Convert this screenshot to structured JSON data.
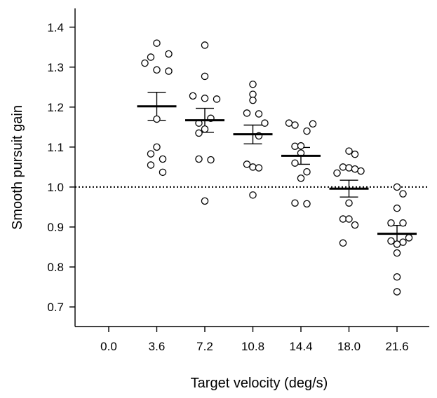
{
  "chart_data": {
    "type": "scatter",
    "xlabel": "Target velocity (deg/s)",
    "ylabel": "Smooth pursuit gain",
    "categories": [
      "0.0",
      "3.6",
      "7.2",
      "10.8",
      "14.4",
      "18.0",
      "21.6"
    ],
    "ylim": [
      0.65,
      1.45
    ],
    "yticks": [
      0.7,
      0.8,
      0.9,
      1.0,
      1.1,
      1.2,
      1.3,
      1.4
    ],
    "ytick_labels": [
      "0.7",
      "0.8",
      "0.9",
      "1.0",
      "1.1",
      "1.2",
      "1.3",
      "1.4"
    ],
    "reference_line": 1.0,
    "grid": false,
    "groups": [
      {
        "category": "3.6",
        "mean": 1.202,
        "err_low": 1.167,
        "err_high": 1.237,
        "points": [
          {
            "o": 0,
            "y": 1.36
          },
          {
            "o": 2,
            "y": 1.333
          },
          {
            "o": -1,
            "y": 1.325
          },
          {
            "o": -2,
            "y": 1.31
          },
          {
            "o": 0,
            "y": 1.293
          },
          {
            "o": 2,
            "y": 1.29
          },
          {
            "o": 0,
            "y": 1.17
          },
          {
            "o": 0,
            "y": 1.1
          },
          {
            "o": -1,
            "y": 1.083
          },
          {
            "o": 1,
            "y": 1.07
          },
          {
            "o": -1,
            "y": 1.055
          },
          {
            "o": 1,
            "y": 1.037
          }
        ]
      },
      {
        "category": "7.2",
        "mean": 1.167,
        "err_low": 1.137,
        "err_high": 1.197,
        "points": [
          {
            "o": 0,
            "y": 1.355
          },
          {
            "o": 0,
            "y": 1.277
          },
          {
            "o": -2,
            "y": 1.228
          },
          {
            "o": 0,
            "y": 1.222
          },
          {
            "o": 2,
            "y": 1.22
          },
          {
            "o": 1,
            "y": 1.172
          },
          {
            "o": -1,
            "y": 1.16
          },
          {
            "o": 0,
            "y": 1.145
          },
          {
            "o": -1,
            "y": 1.135
          },
          {
            "o": -1,
            "y": 1.07
          },
          {
            "o": 1,
            "y": 1.068
          },
          {
            "o": 0,
            "y": 0.965
          }
        ]
      },
      {
        "category": "10.8",
        "mean": 1.132,
        "err_low": 1.108,
        "err_high": 1.155,
        "points": [
          {
            "o": 0,
            "y": 1.257
          },
          {
            "o": 0,
            "y": 1.232
          },
          {
            "o": 0,
            "y": 1.217
          },
          {
            "o": -1,
            "y": 1.185
          },
          {
            "o": 1,
            "y": 1.183
          },
          {
            "o": 2,
            "y": 1.16
          },
          {
            "o": 1,
            "y": 1.128
          },
          {
            "o": -1,
            "y": 1.057
          },
          {
            "o": 0,
            "y": 1.05
          },
          {
            "o": 1,
            "y": 1.048
          },
          {
            "o": 0,
            "y": 0.98
          }
        ]
      },
      {
        "category": "14.4",
        "mean": 1.078,
        "err_low": 1.057,
        "err_high": 1.099,
        "points": [
          {
            "o": -2,
            "y": 1.16
          },
          {
            "o": 2,
            "y": 1.158
          },
          {
            "o": -1,
            "y": 1.155
          },
          {
            "o": 1,
            "y": 1.14
          },
          {
            "o": -1,
            "y": 1.102
          },
          {
            "o": 0,
            "y": 1.103
          },
          {
            "o": 0,
            "y": 1.085
          },
          {
            "o": -1,
            "y": 1.06
          },
          {
            "o": 1,
            "y": 1.038
          },
          {
            "o": 0,
            "y": 1.022
          },
          {
            "o": -1,
            "y": 0.96
          },
          {
            "o": 1,
            "y": 0.958
          }
        ]
      },
      {
        "category": "18.0",
        "mean": 0.996,
        "err_low": 0.975,
        "err_high": 1.017,
        "points": [
          {
            "o": 0,
            "y": 1.09
          },
          {
            "o": 1,
            "y": 1.082
          },
          {
            "o": -1,
            "y": 1.05
          },
          {
            "o": 0,
            "y": 1.048
          },
          {
            "o": 1,
            "y": 1.045
          },
          {
            "o": 2,
            "y": 1.04
          },
          {
            "o": -2,
            "y": 1.035
          },
          {
            "o": 0,
            "y": 0.96
          },
          {
            "o": -1,
            "y": 0.92
          },
          {
            "o": 0,
            "y": 0.92
          },
          {
            "o": 1,
            "y": 0.905
          },
          {
            "o": -1,
            "y": 0.86
          }
        ]
      },
      {
        "category": "21.6",
        "mean": 0.883,
        "err_low": 0.863,
        "err_high": 0.904,
        "points": [
          {
            "o": 0,
            "y": 1.0
          },
          {
            "o": 1,
            "y": 0.983
          },
          {
            "o": 0,
            "y": 0.947
          },
          {
            "o": -1,
            "y": 0.91
          },
          {
            "o": 1,
            "y": 0.91
          },
          {
            "o": 2,
            "y": 0.873
          },
          {
            "o": -1,
            "y": 0.865
          },
          {
            "o": 1,
            "y": 0.862
          },
          {
            "o": 0,
            "y": 0.857
          },
          {
            "o": 0,
            "y": 0.835
          },
          {
            "o": 0,
            "y": 0.775
          },
          {
            "o": 0,
            "y": 0.738
          }
        ]
      }
    ]
  }
}
